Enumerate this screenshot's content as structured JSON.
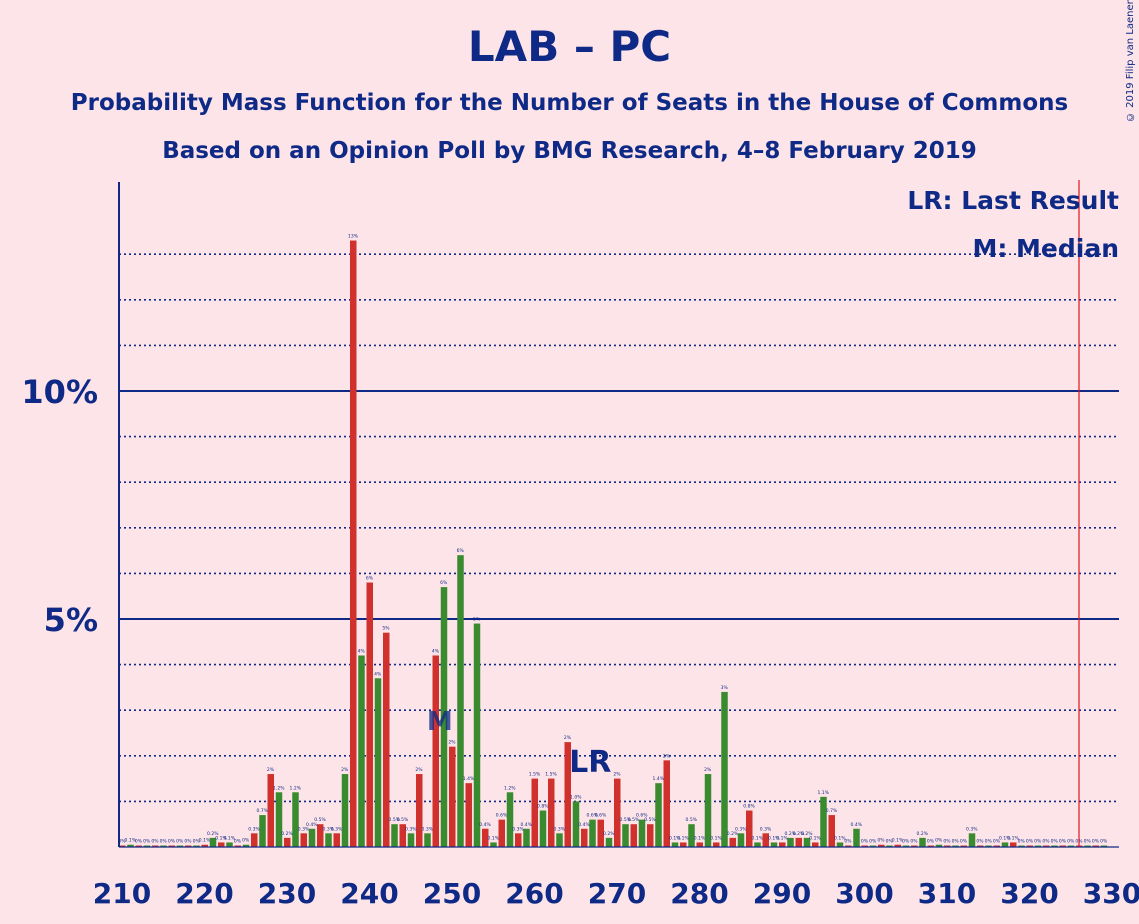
{
  "title": "LAB – PC",
  "subtitle1": "Probability Mass Function for the Number of Seats in the House of Commons",
  "subtitle2": "Based on an Opinion Poll by BMG Research, 4–8 February 2019",
  "copyright": "© 2019 Filip van Laenen",
  "legend": {
    "last_result": "LR: Last Result",
    "median": "M: Median",
    "lr_marker": "LR",
    "median_marker": "M"
  },
  "colors": {
    "red": "#d0312d",
    "green": "#3a8b2f",
    "axis": "#0e2a86",
    "background": "#fde4e8",
    "majority_line": "#e0151f"
  },
  "chart_data": {
    "type": "bar",
    "x_start": 210,
    "x_end": 330,
    "x_ticks": [
      210,
      220,
      230,
      240,
      250,
      260,
      270,
      280,
      290,
      300,
      310,
      320,
      330
    ],
    "y_ticks": [
      {
        "value": 5,
        "label": "5%"
      },
      {
        "value": 10,
        "label": "10%"
      }
    ],
    "ylim": [
      0,
      14.5
    ],
    "last_result": 267,
    "median": 249,
    "majority_line": 326,
    "values": [
      0.03,
      0.05,
      0.03,
      0.03,
      0.03,
      0.03,
      0.03,
      0.03,
      0.03,
      0.03,
      0.05,
      0.2,
      0.1,
      0.1,
      0.03,
      0.05,
      0.3,
      0.7,
      1.6,
      1.2,
      0.2,
      1.2,
      0.3,
      0.4,
      0.5,
      0.3,
      0.3,
      1.6,
      13.3,
      4.2,
      5.8,
      3.7,
      4.7,
      0.5,
      0.5,
      0.3,
      1.6,
      0.3,
      4.2,
      5.7,
      2.2,
      6.4,
      1.4,
      4.9,
      0.4,
      0.1,
      0.6,
      1.2,
      0.3,
      0.4,
      1.5,
      0.8,
      1.5,
      0.3,
      2.3,
      1.0,
      0.4,
      0.6,
      0.6,
      0.2,
      1.5,
      0.5,
      0.5,
      0.6,
      0.5,
      1.4,
      1.9,
      0.1,
      0.1,
      0.5,
      0.1,
      1.6,
      0.1,
      3.4,
      0.2,
      0.3,
      0.8,
      0.1,
      0.3,
      0.1,
      0.1,
      0.2,
      0.2,
      0.2,
      0.1,
      1.1,
      0.7,
      0.1,
      0.03,
      0.4,
      0.03,
      0.03,
      0.05,
      0.03,
      0.05,
      0.03,
      0.03,
      0.2,
      0.03,
      0.05,
      0.03,
      0.03,
      0.03,
      0.3,
      0.03,
      0.03,
      0.03,
      0.1,
      0.1,
      0.03,
      0.03,
      0.03,
      0.03,
      0.03,
      0.03,
      0.03,
      0.03,
      0.03,
      0.03,
      0.03
    ],
    "value_labels": [
      "0%",
      "0.1%",
      "0%",
      "0%",
      "0%",
      "0%",
      "0%",
      "0%",
      "0%",
      "0%",
      "0.1%",
      "0.2%",
      "0.1%",
      "0.1%",
      "0%",
      "0%",
      "0.3%",
      "0.7%",
      "2%",
      "1.2%",
      "0.2%",
      "1.2%",
      "0.3%",
      "0.4%",
      "0.5%",
      "0.3%",
      "0.3%",
      "2%",
      "13%",
      "4%",
      "6%",
      "4%",
      "5%",
      "0.5%",
      "0.5%",
      "0.3%",
      "2%",
      "0.3%",
      "4%",
      "6%",
      "2%",
      "6%",
      "1.4%",
      "5%",
      "0.4%",
      "0.1%",
      "0.6%",
      "1.2%",
      "0.3%",
      "0.4%",
      "1.5%",
      "0.8%",
      "1.5%",
      "0.3%",
      "2%",
      "1.0%",
      "0.4%",
      "0.6%",
      "0.6%",
      "0.2%",
      "2%",
      "0.5%",
      "0.5%",
      "0.6%",
      "0.5%",
      "1.4%",
      "2%",
      "0.1%",
      "0.1%",
      "0.5%",
      "0.1%",
      "2%",
      "0.1%",
      "3%",
      "0.2%",
      "0.3%",
      "0.8%",
      "0.1%",
      "0.3%",
      "0.1%",
      "0.1%",
      "0.2%",
      "0.2%",
      "0.2%",
      "0.1%",
      "1.1%",
      "0.7%",
      "0.1%",
      "0%",
      "0.4%",
      "0%",
      "0%",
      "0%",
      "0%",
      "0.1%",
      "0%",
      "0%",
      "0.2%",
      "0%",
      "0%",
      "0%",
      "0%",
      "0%",
      "0.3%",
      "0%",
      "0%",
      "0%",
      "0.1%",
      "0.1%",
      "0%",
      "0%",
      "0%",
      "0%",
      "0%",
      "0%",
      "0%",
      "0%",
      "0%",
      "0%",
      "0%"
    ]
  }
}
